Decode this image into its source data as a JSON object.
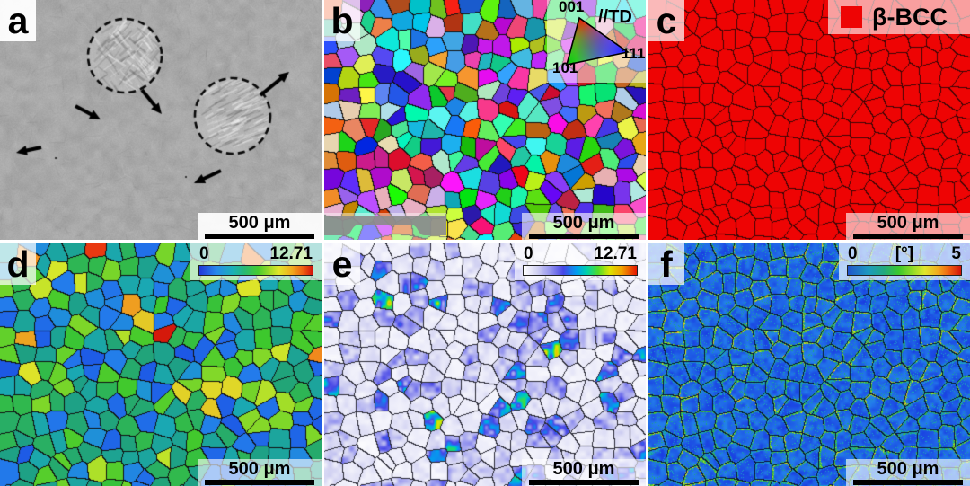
{
  "figure": {
    "colors": {
      "phase_red": "#ee0404",
      "sem_gray": "#a8a8a8",
      "grain_boundary": "#141414",
      "annotation_black": "#000000"
    },
    "panels": [
      {
        "id": "a",
        "label": "a",
        "scale_bar": "500 μm"
      },
      {
        "id": "b",
        "label": "b",
        "scale_bar": "500 μm",
        "ipf_key": {
          "pole_top": "001",
          "pole_bottom_left": "101",
          "pole_bottom_right": "111",
          "direction": "//TD"
        }
      },
      {
        "id": "c",
        "label": "c",
        "scale_bar": "500 μm",
        "phase_legend": {
          "name": "β-BCC",
          "color": "#ee0404"
        }
      },
      {
        "id": "d",
        "label": "d",
        "scale_bar": "500 μm",
        "colorbar": {
          "min": "0",
          "max": "12.71"
        }
      },
      {
        "id": "e",
        "label": "e",
        "scale_bar": "500 μm",
        "colorbar": {
          "min": "0",
          "max": "12.71"
        }
      },
      {
        "id": "f",
        "label": "f",
        "scale_bar": "500 μm",
        "colorbar": {
          "min": "0",
          "unit": "[°]",
          "max": "5"
        }
      }
    ]
  }
}
